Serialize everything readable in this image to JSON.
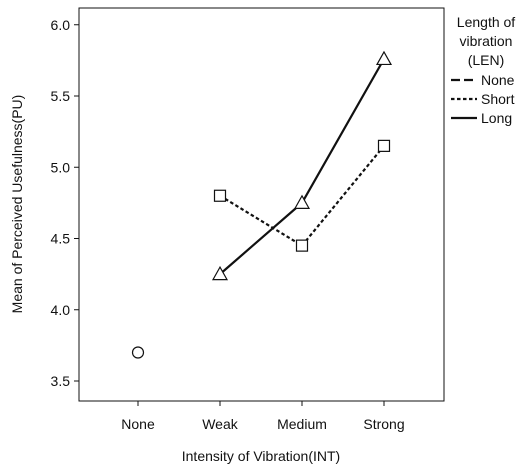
{
  "chart_data": {
    "type": "line",
    "title": "",
    "xlabel": "Intensity of Vibration(INT)",
    "ylabel": "Mean of Perceived Usefulness(PU)",
    "categories": [
      "None",
      "Weak",
      "Medium",
      "Strong"
    ],
    "ylim": [
      3.4,
      6.1
    ],
    "yticks": [
      3.5,
      4.0,
      4.5,
      5.0,
      5.5,
      6.0
    ],
    "ytick_labels": [
      "3.5",
      "4.0",
      "4.5",
      "5.0",
      "5.5",
      "6.0"
    ],
    "grid": false,
    "legend": {
      "title_lines": [
        "Length of",
        "vibration",
        "(LEN)"
      ],
      "placement": "right"
    },
    "series": [
      {
        "name": "None",
        "line_style": "dashed",
        "marker": "circle",
        "values": [
          3.7,
          null,
          null,
          null
        ]
      },
      {
        "name": "Short",
        "line_style": "dotted",
        "marker": "square",
        "values": [
          null,
          4.8,
          4.45,
          5.15
        ]
      },
      {
        "name": "Long",
        "line_style": "solid",
        "marker": "triangle",
        "values": [
          null,
          4.25,
          4.75,
          5.76
        ]
      }
    ]
  },
  "colors": {
    "line": "#111111",
    "marker_fill": "#ffffff",
    "background": "#ffffff"
  }
}
